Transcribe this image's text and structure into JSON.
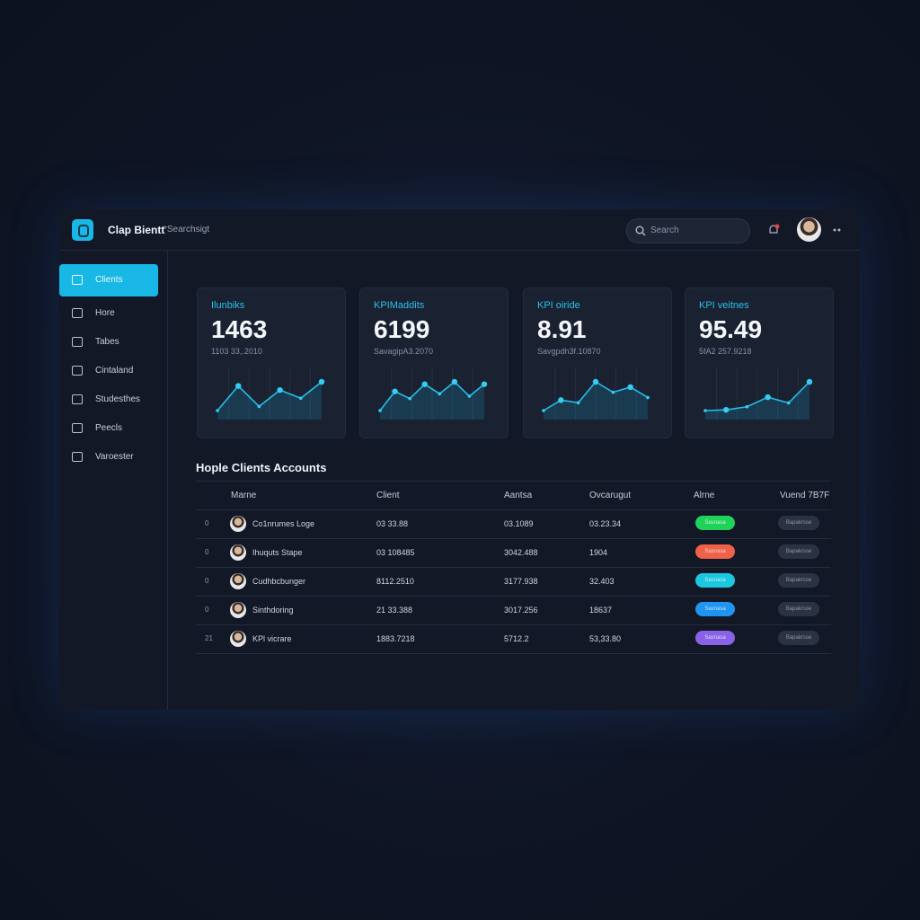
{
  "header": {
    "title": "Clap Bientt",
    "subtitle": "*Searchsigt",
    "search_placeholder": "Search"
  },
  "nav": [
    "Clients",
    "Hore",
    "Tabes",
    "Cintaland",
    "Studesthes",
    "Peecls",
    "Varoester"
  ],
  "cards": [
    {
      "label": "Ilunbiks",
      "value": "1463",
      "sub": "1103 33,.2010",
      "spark": [
        10,
        40,
        15,
        35,
        25,
        45
      ]
    },
    {
      "label": "KPIMaddits",
      "value": "6199",
      "sub": "SavagipA3.2070",
      "spark": [
        5,
        45,
        30,
        60,
        40,
        65,
        35,
        60
      ]
    },
    {
      "label": "KPI oiride",
      "value": "8.91",
      "sub": "Savgpdh3f.10870",
      "spark": [
        5,
        25,
        20,
        60,
        40,
        50,
        30
      ]
    },
    {
      "label": "KPI veitnes",
      "value": "95.49",
      "sub": "5fA2 257.9218",
      "spark": [
        10,
        12,
        20,
        45,
        30,
        85
      ]
    }
  ],
  "table": {
    "title": "Hople Clients Accounts",
    "columns": [
      "Marne",
      "Client",
      "Aantsa",
      "Ovcarugut",
      "Alrne",
      "Vuend 7B7F"
    ],
    "rows": [
      [
        "0",
        "Co1nrumes Loge",
        "03 33.88",
        "03.1089",
        "03.23.34",
        "Sasnasa",
        "Bapakrsse"
      ],
      [
        "0",
        "Ihuquts Stape",
        "03 108485",
        "3042.488",
        "1904",
        "Sasnasa",
        "Bapakrsse"
      ],
      [
        "0",
        "Cudhbcbunger",
        "8112.2510",
        "3177.938",
        "32.403",
        "Sasnasa",
        "Bapakrsse"
      ],
      [
        "0",
        "Sinthdoring",
        "21 33.388",
        "3017.256",
        "18637",
        "Sasnasa",
        "Bapakrsse"
      ],
      [
        "21",
        "KPl vicrare",
        "1883.7218",
        "5712.2",
        "53,33.80",
        "Sasnasa",
        "Bapakrsse"
      ]
    ],
    "badge_colors": [
      "#1fd35a",
      "#f0614a",
      "#1cc7e0",
      "#1f94f0",
      "#8a62e8"
    ]
  }
}
